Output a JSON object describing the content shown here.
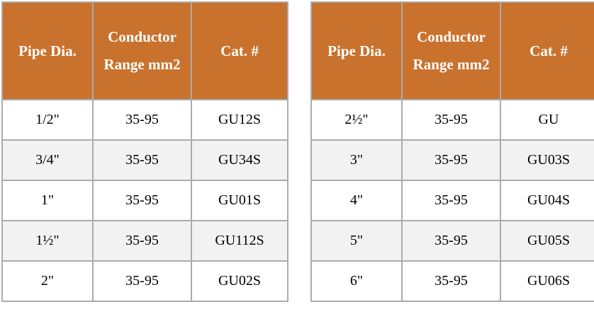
{
  "colors": {
    "header_bg": "#c9722e",
    "header_text": "#ffffff",
    "grid_border": "#ababab",
    "row_bg": "#ffffff",
    "row_alt_bg": "#f2f2f2",
    "body_text": "#000000"
  },
  "tables": [
    {
      "name": "pipe-catalog-left",
      "headers": [
        "Pipe Dia.",
        "Conductor Range mm2",
        "Cat. #"
      ],
      "rows": [
        [
          "1/2\"",
          "35-95",
          "GU12S"
        ],
        [
          "3/4\"",
          "35-95",
          "GU34S"
        ],
        [
          "1\"",
          "35-95",
          "GU01S"
        ],
        [
          "1½\"",
          "35-95",
          "GU112S"
        ],
        [
          "2\"",
          "35-95",
          "GU02S"
        ]
      ]
    },
    {
      "name": "pipe-catalog-right",
      "headers": [
        "Pipe Dia.",
        "Conductor Range mm2",
        "Cat. #"
      ],
      "rows": [
        [
          "2½\"",
          "35-95",
          "GU"
        ],
        [
          "3\"",
          "35-95",
          "GU03S"
        ],
        [
          "4\"",
          "35-95",
          "GU04S"
        ],
        [
          "5\"",
          "35-95",
          "GU05S"
        ],
        [
          "6\"",
          "35-95",
          "GU06S"
        ]
      ]
    }
  ]
}
